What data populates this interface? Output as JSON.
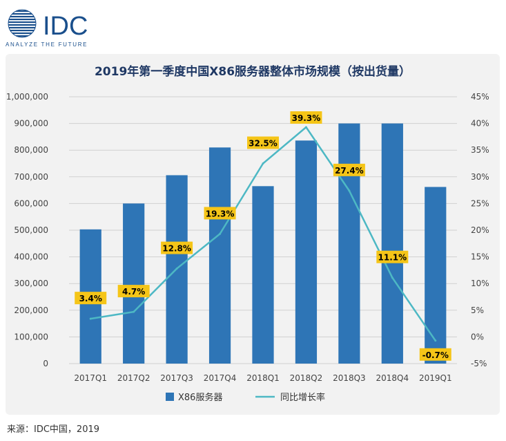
{
  "logo": {
    "brand": "IDC",
    "tagline": "ANALYZE THE FUTURE",
    "color": "#1a4f8c"
  },
  "source_note": "来源：IDC中国，2019",
  "chart_data": {
    "type": "bar",
    "title": "2019年第一季度中国X86服务器整体市场规模（按出货量）",
    "categories": [
      "2017Q1",
      "2017Q2",
      "2017Q3",
      "2017Q4",
      "2018Q1",
      "2018Q2",
      "2018Q3",
      "2018Q4",
      "2019Q1"
    ],
    "series": [
      {
        "name": "X86服务器",
        "type": "bar",
        "axis": "left",
        "color": "#2e75b6",
        "values": [
          503000,
          600000,
          706000,
          810000,
          665000,
          836000,
          900000,
          900000,
          662000
        ]
      },
      {
        "name": "同比增长率",
        "type": "line",
        "axis": "right",
        "color": "#4db8c4",
        "values": [
          3.4,
          4.7,
          12.8,
          19.3,
          32.5,
          39.3,
          27.4,
          11.1,
          -0.7
        ],
        "labels": [
          "3.4%",
          "4.7%",
          "12.8%",
          "19.3%",
          "32.5%",
          "39.3%",
          "27.4%",
          "11.1%",
          "-0.7%"
        ]
      }
    ],
    "y_left": {
      "min": 0,
      "max": 1000000,
      "ticks": [
        0,
        100000,
        200000,
        300000,
        400000,
        500000,
        600000,
        700000,
        800000,
        900000,
        1000000
      ],
      "tick_labels": [
        "0",
        "100,000",
        "200,000",
        "300,000",
        "400,000",
        "500,000",
        "600,000",
        "700,000",
        "800,000",
        "900,000",
        "1,000,000"
      ]
    },
    "y_right": {
      "min": -5,
      "max": 45,
      "ticks": [
        -5,
        0,
        5,
        10,
        15,
        20,
        25,
        30,
        35,
        40,
        45
      ],
      "tick_labels": [
        "-5%",
        "0%",
        "5%",
        "10%",
        "15%",
        "20%",
        "25%",
        "30%",
        "35%",
        "40%",
        "45%"
      ]
    },
    "grid": true,
    "legend_position": "bottom",
    "label_style": {
      "background": "#f5c518",
      "text_color": "#000000"
    }
  }
}
